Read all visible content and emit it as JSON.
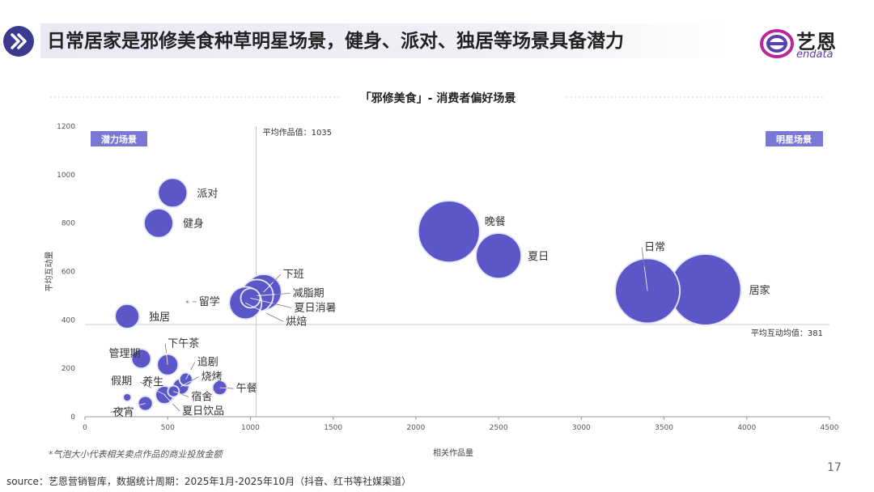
{
  "header": {
    "title": "日常居家是邪修美食种草明星场景，健身、派对、独居等场景具备潜力",
    "icon": "double-chevron-right-icon"
  },
  "logo": {
    "name": "艺恩",
    "sub": "endata",
    "icon": "endata-logo-icon"
  },
  "colors": {
    "bubble": "#5b57c8",
    "bubble_edge": "#ffffff",
    "quadrant_tag": "#7a78d6",
    "axis": "#999999",
    "text": "#333333"
  },
  "chart_data": {
    "type": "scatter",
    "title": "「邪修美食」- 消费者偏好场景",
    "xlabel": "相关作品量",
    "ylabel": "平均互动量",
    "xlim": [
      0,
      4500
    ],
    "ylim": [
      0,
      1200
    ],
    "xticks": [
      0,
      500,
      1000,
      1500,
      2000,
      2500,
      3000,
      3500,
      4000,
      4500
    ],
    "yticks": [
      0,
      200,
      400,
      600,
      800,
      1000,
      1200
    ],
    "grid": false,
    "mean_x": 1035,
    "mean_x_label": "平均作品值：1035",
    "mean_y": 381,
    "mean_y_label": "平均互动均值：381",
    "quadrants": {
      "top_left": "潜力场景",
      "top_right": "明星场景"
    },
    "points": [
      {
        "label": "派对",
        "x": 530,
        "y": 925,
        "size": 18,
        "leader": false
      },
      {
        "label": "健身",
        "x": 445,
        "y": 800,
        "size": 18,
        "leader": false
      },
      {
        "label": "晚餐",
        "x": 2200,
        "y": 765,
        "size": 38,
        "leader": false
      },
      {
        "label": "夏日",
        "x": 2500,
        "y": 665,
        "size": 28,
        "leader": false
      },
      {
        "label": "日常",
        "x": 3400,
        "y": 520,
        "size": 40,
        "leader": true
      },
      {
        "label": "居家",
        "x": 3750,
        "y": 525,
        "size": 44,
        "leader": false
      },
      {
        "label": "下班",
        "x": 1080,
        "y": 515,
        "size": 22,
        "leader": true
      },
      {
        "label": "减脂期",
        "x": 1040,
        "y": 500,
        "size": 20,
        "leader": true
      },
      {
        "label": "夏日消暑",
        "x": 1000,
        "y": 490,
        "size": 12,
        "leader": true
      },
      {
        "label": "烘焙",
        "x": 970,
        "y": 470,
        "size": 20,
        "leader": true
      },
      {
        "label": "留学",
        "x": 620,
        "y": 475,
        "size": 2,
        "leader": true
      },
      {
        "label": "独居",
        "x": 255,
        "y": 415,
        "size": 15,
        "leader": false
      },
      {
        "label": "管理期",
        "x": 340,
        "y": 240,
        "size": 12,
        "leader": false
      },
      {
        "label": "下午茶",
        "x": 500,
        "y": 215,
        "size": 13,
        "leader": true
      },
      {
        "label": "追剧",
        "x": 610,
        "y": 155,
        "size": 8,
        "leader": true
      },
      {
        "label": "烧烤",
        "x": 580,
        "y": 125,
        "size": 10,
        "leader": true
      },
      {
        "label": "午餐",
        "x": 815,
        "y": 120,
        "size": 9,
        "leader": true
      },
      {
        "label": "宿舍",
        "x": 535,
        "y": 105,
        "size": 7,
        "leader": true
      },
      {
        "label": "养生",
        "x": 485,
        "y": 90,
        "size": 11,
        "leader": true
      },
      {
        "label": "假期",
        "x": 255,
        "y": 80,
        "size": 5,
        "leader": false
      },
      {
        "label": "夜宵",
        "x": 365,
        "y": 55,
        "size": 9,
        "leader": true
      },
      {
        "label": "夏日饮品",
        "x": 480,
        "y": 90,
        "size": 11,
        "leader": true
      }
    ]
  },
  "footnote": "*气泡大小代表相关卖点作品的商业投放金额",
  "source": "source：艺恩营销智库，数据统计周期：2025年1月-2025年10月（抖音、红书等社媒渠道）",
  "page_number": "17"
}
